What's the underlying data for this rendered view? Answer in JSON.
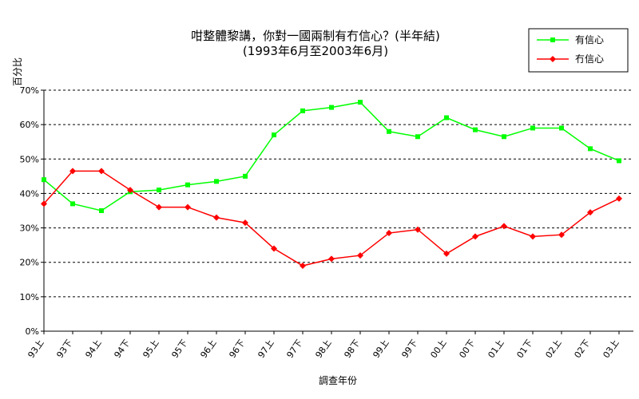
{
  "chart_data": {
    "type": "line",
    "title": "咁整體黎講，你對一國兩制有冇信心？(半年結)",
    "subtitle": "(1993年6月至2003年6月)",
    "xlabel": "調查年份",
    "ylabel": "百分比",
    "ylim": [
      0,
      70
    ],
    "yticks": [
      "0%",
      "10%",
      "20%",
      "30%",
      "40%",
      "50%",
      "60%",
      "70%"
    ],
    "grid": true,
    "legend": "top-right",
    "categories": [
      "93上",
      "93下",
      "94上",
      "94下",
      "95上",
      "95下",
      "96上",
      "96下",
      "97上",
      "97下",
      "98上",
      "98下",
      "99上",
      "99下",
      "00上",
      "00下",
      "01上",
      "01下",
      "02上",
      "02下",
      "03上"
    ],
    "series": [
      {
        "name": "有信心",
        "color": "#00ff00",
        "marker": "square",
        "values": [
          44,
          37,
          35,
          40.5,
          41,
          42.5,
          43.5,
          45,
          57,
          64,
          65,
          66.5,
          58,
          56.5,
          62,
          58.5,
          56.5,
          59,
          59,
          53,
          49.5
        ]
      },
      {
        "name": "冇信心",
        "color": "#ff0000",
        "marker": "diamond",
        "values": [
          37,
          46.5,
          46.5,
          41,
          36,
          36,
          33,
          31.5,
          24,
          19,
          21,
          22,
          28.5,
          29.5,
          22.5,
          27.5,
          30.5,
          27.5,
          28,
          34.5,
          38.5
        ]
      }
    ]
  }
}
